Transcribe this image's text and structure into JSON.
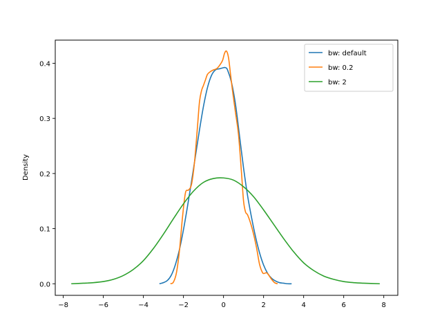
{
  "chart_data": {
    "type": "line",
    "title": "",
    "xlabel": "",
    "ylabel": "Density",
    "xlim": [
      -8.4,
      8.7
    ],
    "ylim": [
      -0.021,
      0.442
    ],
    "xticks": [
      -8,
      -6,
      -4,
      -2,
      0,
      2,
      4,
      6,
      8
    ],
    "xtick_labels": [
      "−8",
      "−6",
      "−4",
      "−2",
      "0",
      "2",
      "4",
      "6",
      "8"
    ],
    "yticks": [
      0.0,
      0.1,
      0.2,
      0.3,
      0.4
    ],
    "ytick_labels": [
      "0.0",
      "0.1",
      "0.2",
      "0.3",
      "0.4"
    ],
    "grid": false,
    "legend_position": "upper right",
    "series": [
      {
        "name": "bw: default",
        "color": "#1f77b4",
        "x": [
          -3.2,
          -3.0,
          -2.8,
          -2.6,
          -2.4,
          -2.2,
          -2.0,
          -1.8,
          -1.6,
          -1.4,
          -1.2,
          -1.0,
          -0.8,
          -0.6,
          -0.4,
          -0.2,
          0.0,
          0.1,
          0.2,
          0.4,
          0.6,
          0.8,
          1.0,
          1.2,
          1.4,
          1.6,
          1.8,
          2.0,
          2.2,
          2.4,
          2.6,
          2.8,
          3.0,
          3.2,
          3.4
        ],
        "y": [
          0.0,
          0.002,
          0.006,
          0.016,
          0.035,
          0.062,
          0.098,
          0.14,
          0.185,
          0.232,
          0.279,
          0.322,
          0.356,
          0.378,
          0.388,
          0.39,
          0.392,
          0.392,
          0.388,
          0.365,
          0.325,
          0.268,
          0.21,
          0.16,
          0.12,
          0.085,
          0.056,
          0.034,
          0.019,
          0.01,
          0.005,
          0.002,
          0.001,
          0.0,
          0.0
        ]
      },
      {
        "name": "bw: 0.2",
        "color": "#ff7f0e",
        "x": [
          -2.65,
          -2.5,
          -2.35,
          -2.2,
          -2.05,
          -1.9,
          -1.75,
          -1.6,
          -1.45,
          -1.3,
          -1.2,
          -1.1,
          -1.0,
          -0.9,
          -0.8,
          -0.65,
          -0.5,
          -0.35,
          -0.2,
          -0.05,
          0.05,
          0.15,
          0.25,
          0.35,
          0.45,
          0.6,
          0.75,
          0.9,
          1.0,
          1.1,
          1.2,
          1.35,
          1.5,
          1.65,
          1.8,
          1.95,
          2.05,
          2.15,
          2.25,
          2.4,
          2.55,
          2.7
        ],
        "y": [
          0.0,
          0.003,
          0.02,
          0.06,
          0.12,
          0.165,
          0.17,
          0.18,
          0.22,
          0.285,
          0.33,
          0.35,
          0.36,
          0.37,
          0.38,
          0.385,
          0.388,
          0.39,
          0.396,
          0.405,
          0.418,
          0.422,
          0.41,
          0.38,
          0.35,
          0.31,
          0.27,
          0.2,
          0.15,
          0.13,
          0.125,
          0.11,
          0.09,
          0.065,
          0.035,
          0.02,
          0.019,
          0.02,
          0.016,
          0.008,
          0.002,
          0.0
        ]
      },
      {
        "name": "bw: 2",
        "color": "#2ca02c",
        "x": [
          -7.6,
          -7.0,
          -6.5,
          -6.0,
          -5.5,
          -5.0,
          -4.5,
          -4.0,
          -3.5,
          -3.0,
          -2.5,
          -2.0,
          -1.5,
          -1.0,
          -0.5,
          0.0,
          0.5,
          1.0,
          1.5,
          2.0,
          2.5,
          3.0,
          3.5,
          4.0,
          4.5,
          5.0,
          5.5,
          6.0,
          6.5,
          7.0,
          7.8
        ],
        "y": [
          0.0,
          0.001,
          0.002,
          0.004,
          0.008,
          0.015,
          0.026,
          0.042,
          0.064,
          0.09,
          0.118,
          0.145,
          0.168,
          0.184,
          0.191,
          0.192,
          0.188,
          0.176,
          0.158,
          0.134,
          0.108,
          0.082,
          0.058,
          0.038,
          0.024,
          0.014,
          0.008,
          0.004,
          0.002,
          0.001,
          0.0
        ]
      }
    ]
  },
  "axes": {
    "ylabel": "Density"
  }
}
